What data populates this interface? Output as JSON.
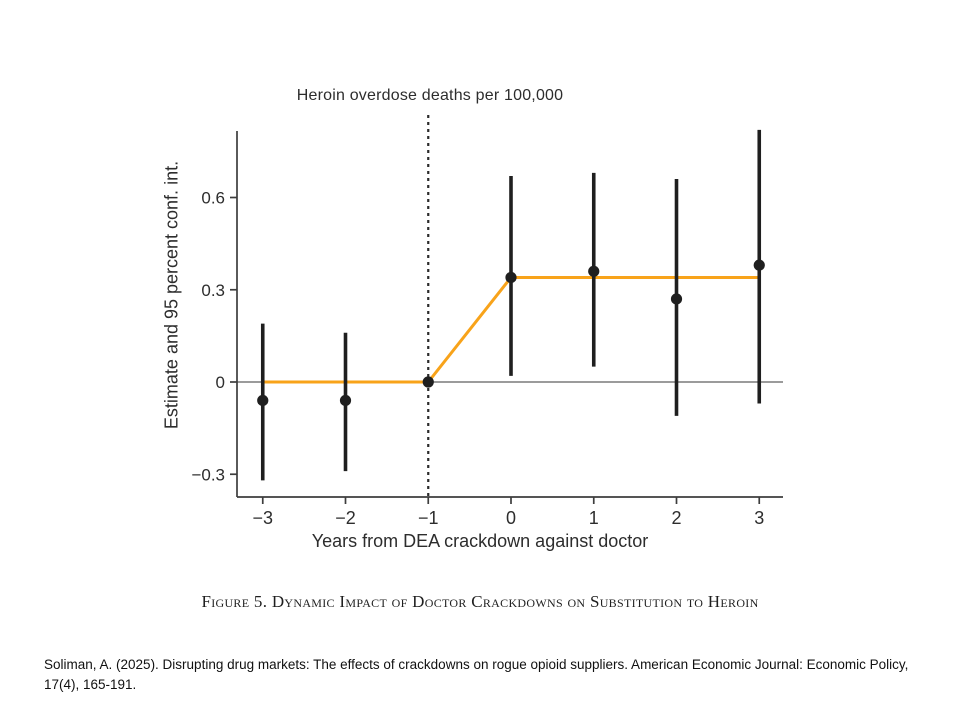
{
  "figure": {
    "title": "Heroin overdose deaths per 100,000",
    "y_axis_label": "Estimate and 95 percent conf. int.",
    "x_axis_label": "Years from DEA crackdown against doctor",
    "caption": "Figure 5. Dynamic Impact of Doctor Crackdowns on Substitution to Heroin"
  },
  "citation": {
    "text": "Soliman, A. (2025). Disrupting drug markets: The effects of crackdowns on rogue opioid suppliers. American Economic Journal: Economic Policy, 17(4), 165-191."
  },
  "colors": {
    "estimate_marker": "#1f1f1f",
    "ci_bar": "#1f1f1f",
    "fit_line_orange": "#F8A31A",
    "zero_line_gray": "#7a7a7a",
    "axis": "#3d3d3d",
    "dashed_reference_line": "#2b2b2b",
    "tick_text": "#2d2d2d"
  },
  "chart_data": {
    "type": "scatter",
    "title": "Heroin overdose deaths per 100,000",
    "xlabel": "Years from DEA crackdown against doctor",
    "ylabel": "Estimate and 95 percent conf. int.",
    "grid": false,
    "legend_position": "none",
    "xlim": [
      -3.31,
      3.29
    ],
    "ylim": [
      -0.37,
      0.82
    ],
    "x": [
      -3,
      -2,
      -1,
      0,
      1,
      2,
      3
    ],
    "estimates": [
      -0.06,
      -0.06,
      0,
      0.34,
      0.36,
      0.27,
      0.38
    ],
    "ci_low": [
      -0.32,
      -0.29,
      null,
      0.02,
      0.05,
      -0.11,
      -0.07
    ],
    "ci_high": [
      0.19,
      0.16,
      null,
      0.67,
      0.68,
      0.66,
      0.82
    ],
    "fit_line": {
      "description": "piecewise fit: 0 in pre-period, jump to post-period mean 0.34",
      "points": [
        [
          -3,
          0
        ],
        [
          -1,
          0
        ],
        [
          0,
          0.34
        ],
        [
          3,
          0.34
        ]
      ]
    },
    "reference_line_x": -1,
    "zero_line_y": 0,
    "x_ticks": {
      "values": [
        -3,
        -2,
        -1,
        0,
        1,
        2,
        3
      ],
      "labels": [
        "−3",
        "−2",
        "−1",
        "0",
        "1",
        "2",
        "3"
      ]
    },
    "y_ticks": {
      "values": [
        0.6,
        0.3,
        0,
        -0.3
      ],
      "labels": [
        "0.6",
        "0.3",
        "0",
        "−0.3"
      ]
    }
  }
}
